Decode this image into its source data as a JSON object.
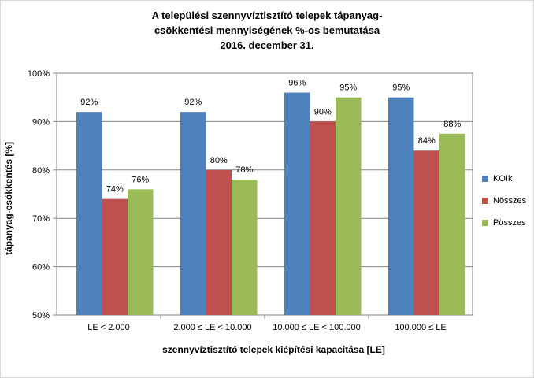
{
  "title_lines": [
    "A települési szennyvíztisztító telepek tápanyag-",
    "csökkentési mennyiségének %-os bemutatása",
    "2016. december 31."
  ],
  "chart_data": {
    "type": "bar",
    "title": "A települési szennyvíztisztító telepek tápanyag-csökkentési mennyiségének %-os bemutatása 2016. december 31.",
    "xlabel": "szennyvíztisztító telepek kiépítési kapacitása [LE]",
    "ylabel": "tápanyag-csökkentés [%]",
    "categories": [
      "LE < 2.000",
      "2.000 ≤ LE < 10.000",
      "10.000 ≤ LE < 100.000",
      "100.000 ≤  LE"
    ],
    "series": [
      {
        "name": "KOIk",
        "color": "#4f81bd",
        "values": [
          92,
          92,
          96,
          95
        ],
        "labels": [
          "92%",
          "92%",
          "96%",
          "95%"
        ]
      },
      {
        "name": "Nösszes",
        "color": "#c0504d",
        "values": [
          74,
          80,
          90,
          84
        ],
        "labels": [
          "74%",
          "80%",
          "90%",
          "84%"
        ]
      },
      {
        "name": "Pösszes",
        "color": "#9bbb59",
        "values": [
          76,
          78,
          95,
          87.5
        ],
        "labels": [
          "76%",
          "78%",
          "95%",
          "88%"
        ]
      }
    ],
    "ylim": [
      50,
      100
    ],
    "yticks": [
      50,
      60,
      70,
      80,
      90,
      100
    ],
    "ytick_labels": [
      "50%",
      "60%",
      "70%",
      "80%",
      "90%",
      "100%"
    ],
    "grid": true,
    "legend": "right"
  }
}
